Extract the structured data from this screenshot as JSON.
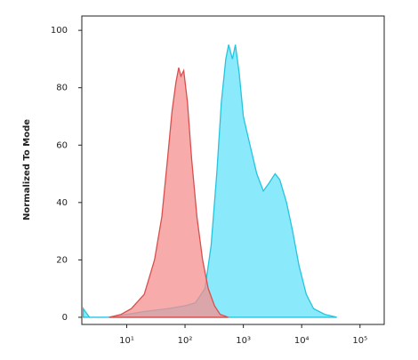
{
  "chart_data": {
    "type": "area",
    "ylabel": "Normalized To Mode",
    "xscale": "log",
    "xlim": [
      1.7,
      260000
    ],
    "ylim": [
      -2.5,
      105
    ],
    "xticks": [
      {
        "value": 10,
        "label": "10¹"
      },
      {
        "value": 100,
        "label": "10²"
      },
      {
        "value": 1000,
        "label": "10³"
      },
      {
        "value": 10000,
        "label": "10⁴"
      },
      {
        "value": 100000,
        "label": "10⁵"
      }
    ],
    "yticks": [
      0,
      20,
      40,
      60,
      80,
      100
    ],
    "series": [
      {
        "color": "#27c4de",
        "fill": "#84e8fa",
        "x": [
          1.8,
          2.3,
          5,
          10,
          20,
          50,
          100,
          150,
          220,
          280,
          350,
          420,
          500,
          560,
          650,
          730,
          850,
          1000,
          1300,
          1700,
          2200,
          2800,
          3500,
          4200,
          5500,
          7000,
          9000,
          12000,
          16000,
          25000,
          40000
        ],
        "values": [
          3,
          0,
          0,
          1,
          2,
          3,
          4,
          5,
          10,
          25,
          50,
          75,
          90,
          95,
          90,
          95,
          85,
          70,
          60,
          50,
          44,
          47,
          50,
          48,
          40,
          30,
          18,
          8,
          3,
          1,
          0
        ]
      },
      {
        "color": "#d8504e",
        "fill": "#f58f8f",
        "x": [
          5,
          8,
          12,
          20,
          30,
          40,
          50,
          60,
          70,
          78,
          85,
          95,
          110,
          130,
          160,
          200,
          250,
          320,
          400,
          550
        ],
        "values": [
          0,
          1,
          3,
          8,
          20,
          35,
          55,
          72,
          82,
          87,
          84,
          86,
          75,
          55,
          35,
          20,
          10,
          4,
          1,
          0
        ]
      }
    ]
  }
}
